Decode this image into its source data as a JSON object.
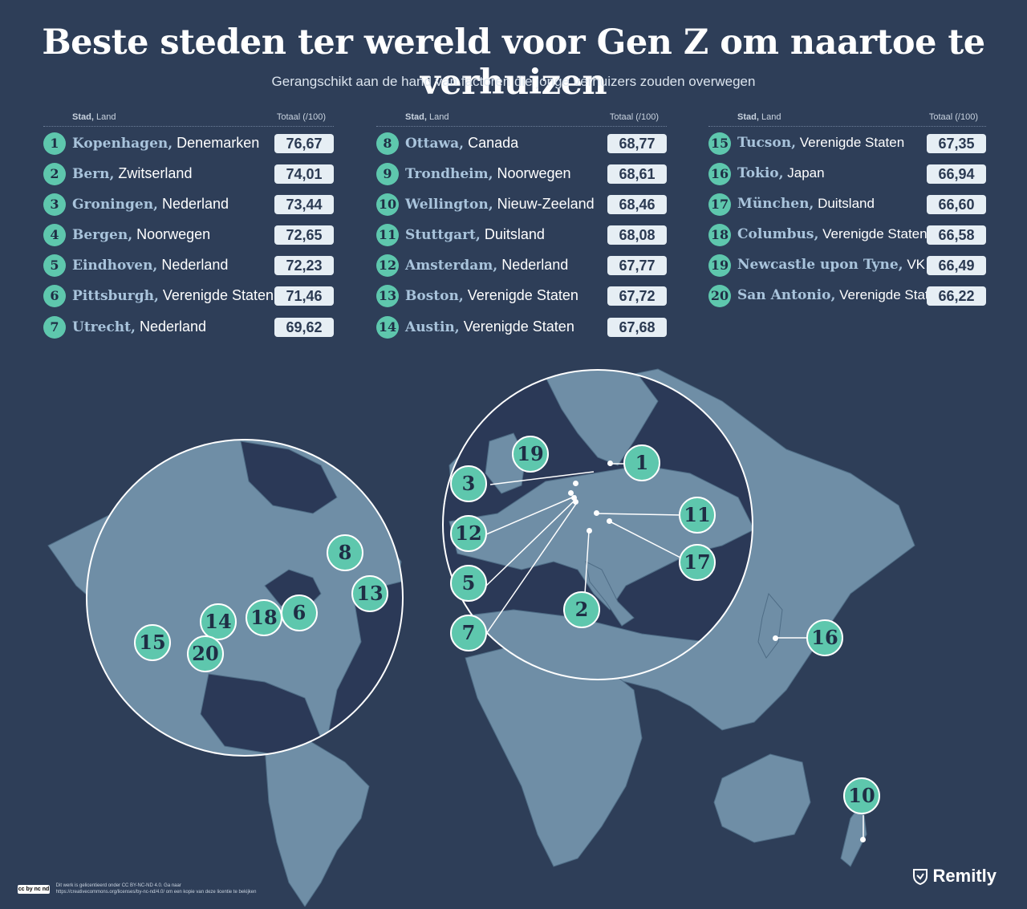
{
  "header": {
    "title": "Beste steden ter wereld voor Gen Z om naartoe te verhuizen",
    "subtitle": "Gerangschikt aan de hand van factoren die jonge verhuizers zouden overwegen"
  },
  "table": {
    "col_city": "Stad,",
    "col_country": " Land",
    "col_score": "Totaal (/100)"
  },
  "rankings": [
    {
      "rank": "1",
      "city": "Kopenhagen,",
      "country": " Denemarken",
      "score": "76,67"
    },
    {
      "rank": "2",
      "city": "Bern,",
      "country": " Zwitserland",
      "score": "74,01"
    },
    {
      "rank": "3",
      "city": "Groningen,",
      "country": " Nederland",
      "score": "73,44"
    },
    {
      "rank": "4",
      "city": "Bergen,",
      "country": " Noorwegen",
      "score": "72,65"
    },
    {
      "rank": "5",
      "city": "Eindhoven,",
      "country": " Nederland",
      "score": "72,23"
    },
    {
      "rank": "6",
      "city": "Pittsburgh,",
      "country": " Verenigde Staten",
      "score": "71,46"
    },
    {
      "rank": "7",
      "city": "Utrecht,",
      "country": " Nederland",
      "score": "69,62"
    },
    {
      "rank": "8",
      "city": "Ottawa,",
      "country": " Canada",
      "score": "68,77"
    },
    {
      "rank": "9",
      "city": "Trondheim,",
      "country": " Noorwegen",
      "score": "68,61"
    },
    {
      "rank": "10",
      "city": "Wellington,",
      "country": " Nieuw-Zeeland",
      "score": "68,46"
    },
    {
      "rank": "11",
      "city": "Stuttgart,",
      "country": " Duitsland",
      "score": "68,08"
    },
    {
      "rank": "12",
      "city": "Amsterdam,",
      "country": " Nederland",
      "score": "67,77"
    },
    {
      "rank": "13",
      "city": "Boston,",
      "country": " Verenigde Staten",
      "score": "67,72"
    },
    {
      "rank": "14",
      "city": "Austin,",
      "country": " Verenigde Staten",
      "score": "67,68"
    },
    {
      "rank": "15",
      "city": "Tucson,",
      "country": " Verenigde Staten",
      "score": "67,35"
    },
    {
      "rank": "16",
      "city": "Tokio,",
      "country": " Japan",
      "score": "66,94"
    },
    {
      "rank": "17",
      "city": "München,",
      "country": " Duitsland",
      "score": "66,60"
    },
    {
      "rank": "18",
      "city": "Columbus,",
      "country": " Verenigde Staten",
      "score": "66,58"
    },
    {
      "rank": "19",
      "city": "Newcastle upon Tyne,",
      "country": " VK",
      "score": "66,49"
    },
    {
      "rank": "20",
      "city": "San Antonio,",
      "country": " Verenigde Staten",
      "score": "66,22"
    }
  ],
  "map_markers": {
    "m1": "1",
    "m2": "2",
    "m3": "3",
    "m5": "5",
    "m6": "6",
    "m7": "7",
    "m8": "8",
    "m10": "10",
    "m11": "11",
    "m12": "12",
    "m13": "13",
    "m14": "14",
    "m15": "15",
    "m16": "16",
    "m17": "17",
    "m18": "18",
    "m19": "19",
    "m20": "20"
  },
  "footer": {
    "license_badge": "cc by nc nd",
    "license_line1": "Dit werk is gelicentieerd onder CC BY-NC-ND 4.0. Ga naar",
    "license_line2": "https://creativecommons.org/licenses/by-nc-nd/4.0/ om een kopie van deze licentie te bekijken",
    "brand": "Remitly"
  },
  "colors": {
    "background": "#2e3e58",
    "land": "#6f8ea6",
    "accent": "#5ec7ad",
    "pin": "#f2a93b"
  }
}
